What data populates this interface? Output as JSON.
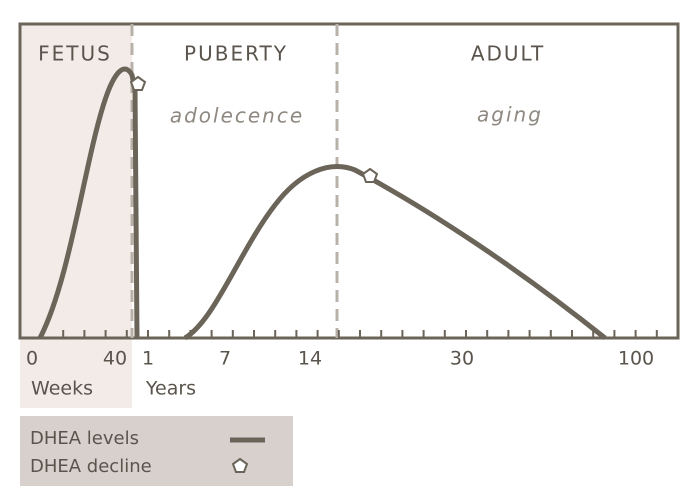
{
  "phases": [
    {
      "label": "FETUS"
    },
    {
      "label": "PUBERTY",
      "note": "adolecence"
    },
    {
      "label": "ADULT",
      "note": "aging"
    }
  ],
  "axis": {
    "ticks": [
      "0",
      "40",
      "1",
      "7",
      "14",
      "30",
      "100"
    ],
    "units": [
      "Weeks",
      "Years"
    ]
  },
  "legend": {
    "items": [
      "DHEA levels",
      "DHEA decline"
    ]
  }
}
